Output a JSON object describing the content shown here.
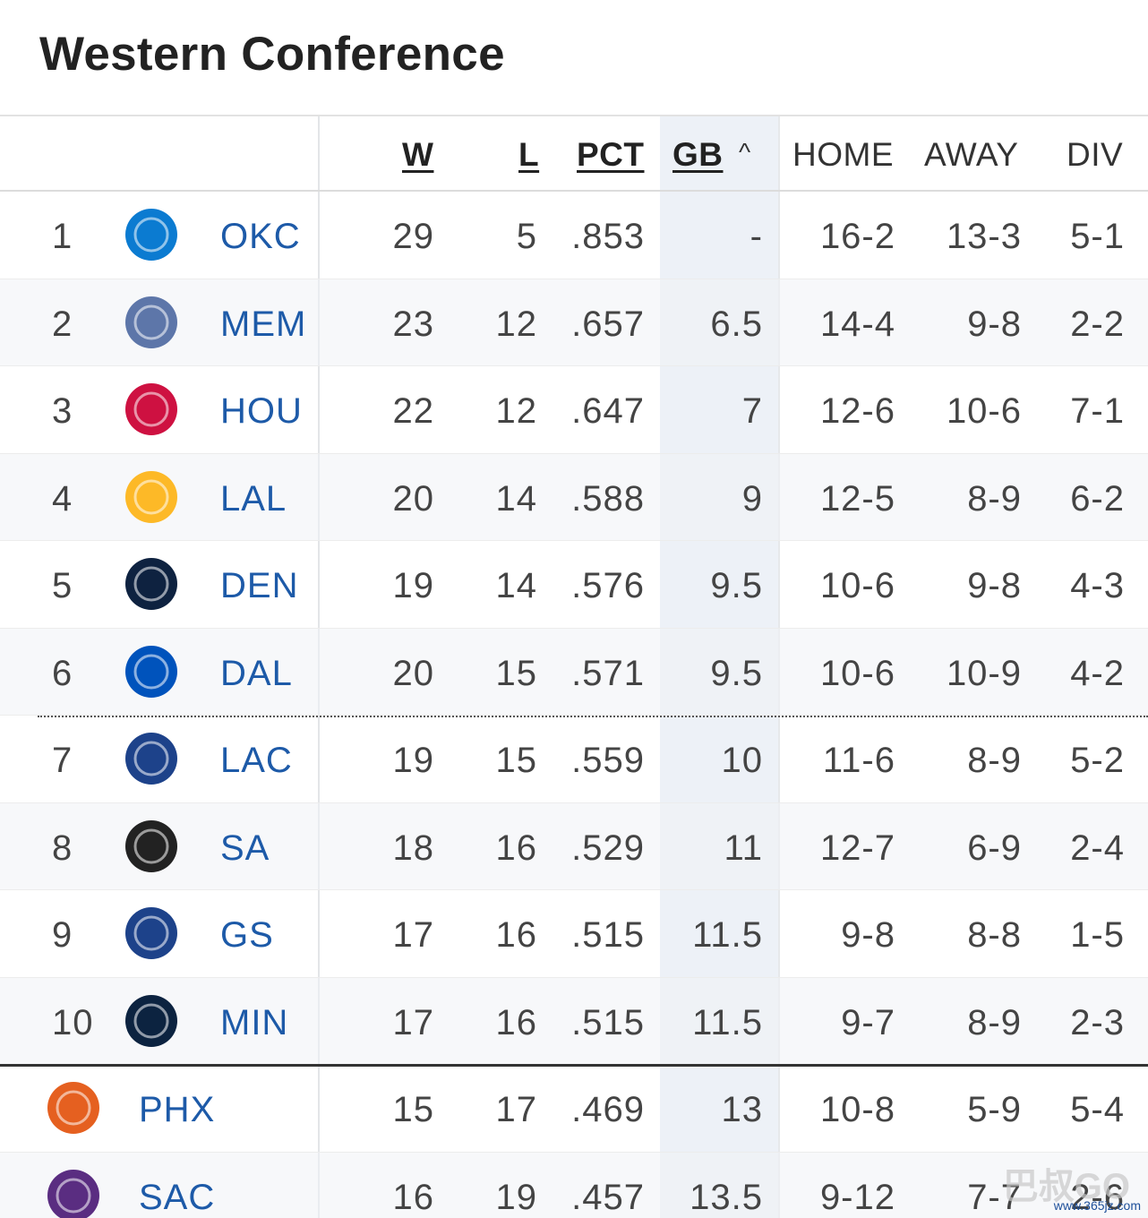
{
  "title": "Western Conference",
  "headers": {
    "w": "W",
    "l": "L",
    "pct": "PCT",
    "gb": "GB",
    "home": "HOME",
    "away": "AWAY",
    "div": "DIV"
  },
  "sort_glyph": "^",
  "rows": [
    {
      "rank": "1",
      "team": "OKC",
      "w": "29",
      "l": "5",
      "pct": ".853",
      "gb": "-",
      "home": "16-2",
      "away": "13-3",
      "div": "5-1",
      "logo": "thunder-logo",
      "color": "#0b7bd1"
    },
    {
      "rank": "2",
      "team": "MEM",
      "w": "23",
      "l": "12",
      "pct": ".657",
      "gb": "6.5",
      "home": "14-4",
      "away": "9-8",
      "div": "2-2",
      "logo": "grizzlies-logo",
      "color": "#5d76a9"
    },
    {
      "rank": "3",
      "team": "HOU",
      "w": "22",
      "l": "12",
      "pct": ".647",
      "gb": "7",
      "home": "12-6",
      "away": "10-6",
      "div": "7-1",
      "logo": "rockets-logo",
      "color": "#ce1141"
    },
    {
      "rank": "4",
      "team": "LAL",
      "w": "20",
      "l": "14",
      "pct": ".588",
      "gb": "9",
      "home": "12-5",
      "away": "8-9",
      "div": "6-2",
      "logo": "lakers-logo",
      "color": "#fdb927"
    },
    {
      "rank": "5",
      "team": "DEN",
      "w": "19",
      "l": "14",
      "pct": ".576",
      "gb": "9.5",
      "home": "10-6",
      "away": "9-8",
      "div": "4-3",
      "logo": "nuggets-logo",
      "color": "#0e2240"
    },
    {
      "rank": "6",
      "team": "DAL",
      "w": "20",
      "l": "15",
      "pct": ".571",
      "gb": "9.5",
      "home": "10-6",
      "away": "10-9",
      "div": "4-2",
      "logo": "mavericks-logo",
      "color": "#0053bc"
    },
    {
      "rank": "7",
      "team": "LAC",
      "w": "19",
      "l": "15",
      "pct": ".559",
      "gb": "10",
      "home": "11-6",
      "away": "8-9",
      "div": "5-2",
      "logo": "clippers-logo",
      "color": "#1d428a"
    },
    {
      "rank": "8",
      "team": "SA",
      "w": "18",
      "l": "16",
      "pct": ".529",
      "gb": "11",
      "home": "12-7",
      "away": "6-9",
      "div": "2-4",
      "logo": "spurs-logo",
      "color": "#222222"
    },
    {
      "rank": "9",
      "team": "GS",
      "w": "17",
      "l": "16",
      "pct": ".515",
      "gb": "11.5",
      "home": "9-8",
      "away": "8-8",
      "div": "1-5",
      "logo": "warriors-logo",
      "color": "#1d428a"
    },
    {
      "rank": "10",
      "team": "MIN",
      "w": "17",
      "l": "16",
      "pct": ".515",
      "gb": "11.5",
      "home": "9-7",
      "away": "8-9",
      "div": "2-3",
      "logo": "timberwolves-logo",
      "color": "#0c2340"
    },
    {
      "rank": "",
      "team": "PHX",
      "w": "15",
      "l": "17",
      "pct": ".469",
      "gb": "13",
      "home": "10-8",
      "away": "5-9",
      "div": "5-4",
      "logo": "suns-logo",
      "color": "#e56020"
    },
    {
      "rank": "",
      "team": "SAC",
      "w": "16",
      "l": "19",
      "pct": ".457",
      "gb": "13.5",
      "home": "9-12",
      "away": "7-7",
      "div": "2-6",
      "logo": "kings-logo",
      "color": "#5a2d81"
    }
  ],
  "watermark": "巴叔GO",
  "watermark_url": "www.365jz.com"
}
